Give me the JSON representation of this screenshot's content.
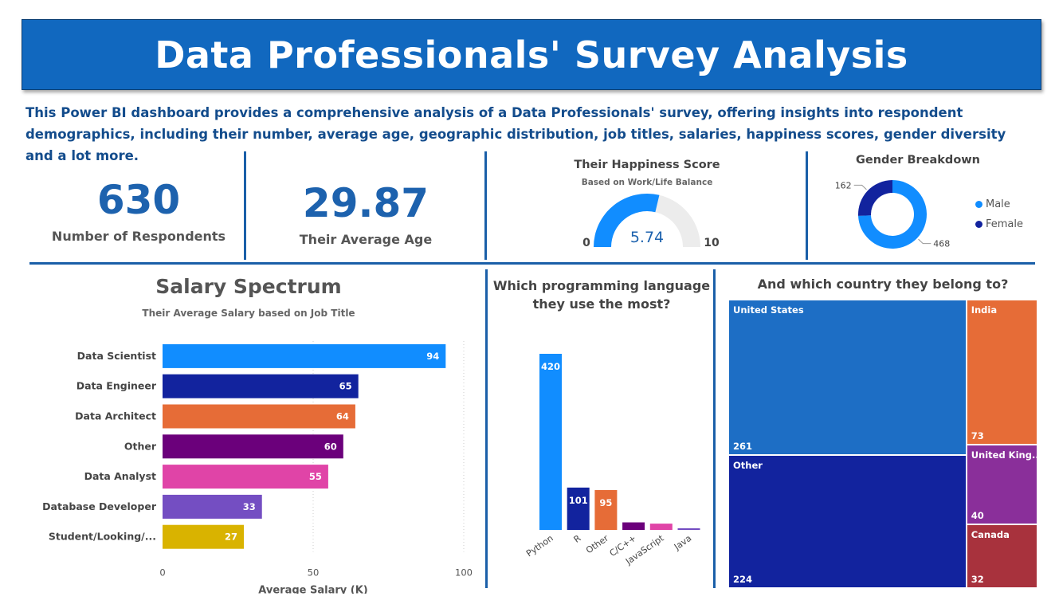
{
  "header": {
    "title": "Data Professionals' Survey Analysis",
    "description": "This Power BI dashboard provides a comprehensive analysis of a Data Professionals' survey, offering insights into respondent demographics, including their number, average age, geographic distribution, job titles, salaries, happiness scores, gender diversity and  a lot more."
  },
  "kpis": {
    "respondents": {
      "value": "630",
      "label": "Number of Respondents"
    },
    "age": {
      "value": "29.87",
      "label": "Their Average Age"
    }
  },
  "colors": {
    "accent": "#1168bf",
    "divider": "#1a5fa8",
    "male": "#118dff",
    "female": "#12239e"
  },
  "chart_data": [
    {
      "id": "happiness",
      "type": "gauge",
      "title": "Their Happiness Score",
      "subtitle": "Based on Work/Life Balance",
      "min": 0,
      "max": 10,
      "value": 5.74,
      "min_label": "0",
      "max_label": "10",
      "value_label": "5.74"
    },
    {
      "id": "gender",
      "type": "donut",
      "title": "Gender Breakdown",
      "series": [
        {
          "name": "Male",
          "value": 468,
          "color": "#118dff"
        },
        {
          "name": "Female",
          "value": 162,
          "color": "#12239e"
        }
      ],
      "legend": "right"
    },
    {
      "id": "salary",
      "type": "bar",
      "orientation": "horizontal",
      "title": "Salary Spectrum",
      "subtitle": "Their Average Salary based on Job Title",
      "xlabel": "Average Salary (K)",
      "xlim": [
        0,
        100
      ],
      "xticks": [
        "0",
        "50",
        "100"
      ],
      "categories": [
        "Data Scientist",
        "Data Engineer",
        "Data Architect",
        "Other",
        "Data Analyst",
        "Database Developer",
        "Student/Looking/..."
      ],
      "values": [
        94,
        65,
        64,
        60,
        55,
        33,
        27
      ],
      "colors": [
        "#118dff",
        "#12239e",
        "#e66c37",
        "#6b007b",
        "#e044a7",
        "#744ec2",
        "#d9b300"
      ]
    },
    {
      "id": "language",
      "type": "bar",
      "orientation": "vertical",
      "title_line1": "Which programming language",
      "title_line2": "they use the most?",
      "categories": [
        "Python",
        "R",
        "Other",
        "C/C++",
        "JavaScript",
        "Java"
      ],
      "values": [
        420,
        101,
        95,
        18,
        15,
        4
      ],
      "labels": [
        "420",
        "101",
        "95",
        "",
        "",
        ""
      ],
      "colors": [
        "#118dff",
        "#12239e",
        "#e66c37",
        "#6b007b",
        "#e044a7",
        "#744ec2"
      ]
    },
    {
      "id": "country",
      "type": "treemap",
      "title": "And which country they belong to?",
      "items": [
        {
          "name": "United States",
          "value": 261,
          "label": "261",
          "color": "#1d6ec5"
        },
        {
          "name": "Other",
          "value": 224,
          "label": "224",
          "color": "#12239e"
        },
        {
          "name": "India",
          "value": 73,
          "label": "73",
          "color": "#e66c37"
        },
        {
          "name": "United King...",
          "value": 40,
          "label": "40",
          "color": "#8a2f9a"
        },
        {
          "name": "Canada",
          "value": 32,
          "label": "32",
          "color": "#a8323d"
        }
      ]
    }
  ]
}
